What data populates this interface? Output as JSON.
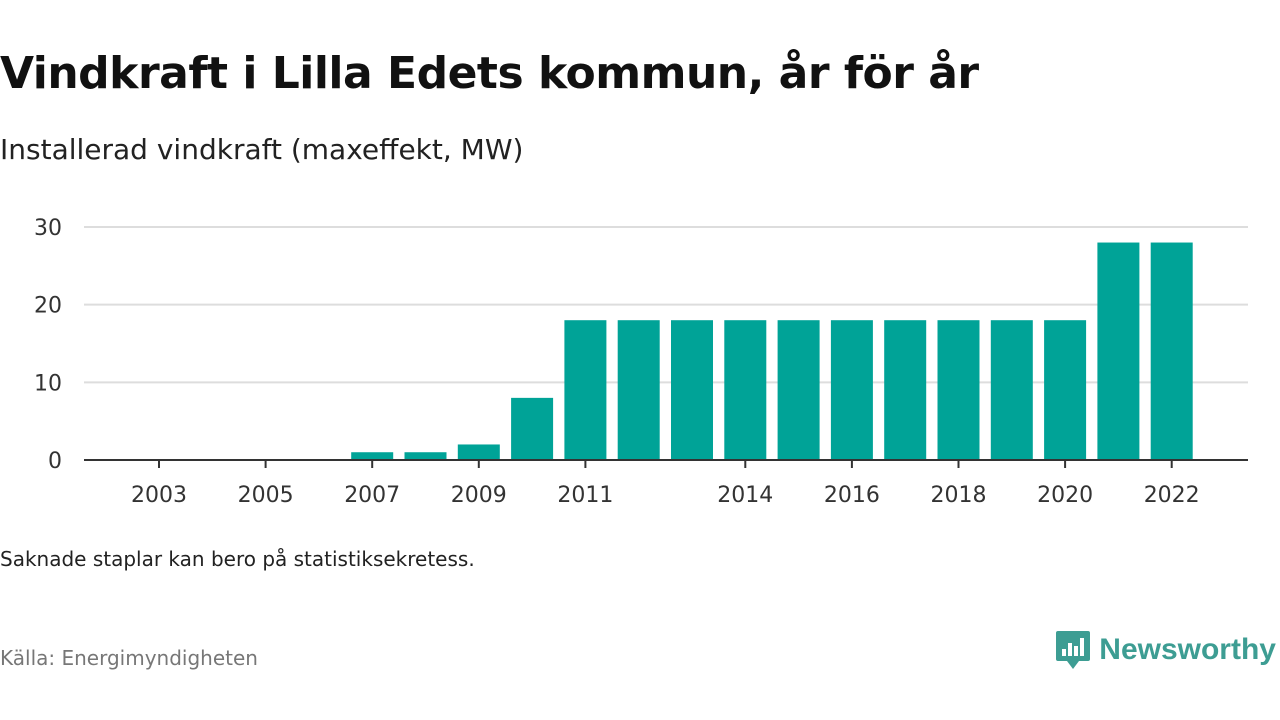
{
  "title": "Vindkraft i Lilla Edets kommun, år för år",
  "subtitle": "Installerad vindkraft (maxeffekt, MW)",
  "note": "Saknade staplar kan bero på statistiksekretess.",
  "source": "Källa: Energimyndigheten",
  "brand": {
    "name": "Newsworthy",
    "icon": "newsworthy-logo-icon",
    "color": "#3d9d93"
  },
  "colors": {
    "bar": "#00a397",
    "grid": "#dddddd",
    "axis": "#333333"
  },
  "chart_data": {
    "type": "bar",
    "categories": [
      "2003",
      "2004",
      "2005",
      "2006",
      "2007",
      "2008",
      "2009",
      "2010",
      "2011",
      "2012",
      "2013",
      "2014",
      "2015",
      "2016",
      "2017",
      "2018",
      "2019",
      "2020",
      "2021",
      "2022"
    ],
    "values": [
      0,
      0,
      0,
      0,
      1,
      1,
      2,
      8,
      18,
      18,
      18,
      18,
      18,
      18,
      18,
      18,
      18,
      18,
      28,
      28
    ],
    "x_tick_labels": [
      "2003",
      "2005",
      "2007",
      "2009",
      "2011",
      "2014",
      "2016",
      "2018",
      "2020",
      "2022"
    ],
    "y_ticks": [
      0,
      10,
      20,
      30
    ],
    "ylim": [
      0,
      30
    ],
    "xlabel": "",
    "ylabel": "",
    "grid": true,
    "legend": "none"
  }
}
